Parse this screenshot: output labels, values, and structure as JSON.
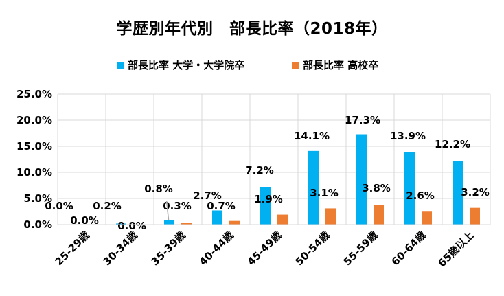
{
  "chart_data": {
    "type": "bar",
    "title": "学歴別年代別　部長比率（2018年）",
    "categories": [
      "25-29歳",
      "30-34歳",
      "35-39歳",
      "40-44歳",
      "45-49歳",
      "50-54歳",
      "55-59歳",
      "60-64歳",
      "65歳以上"
    ],
    "series": [
      {
        "name": "部長比率 大学・大学院卒",
        "color": "#00B0F0",
        "values": [
          0.0,
          0.2,
          0.8,
          2.7,
          7.2,
          14.1,
          17.3,
          13.9,
          12.2
        ],
        "labels": [
          "0.0%",
          "0.2%",
          "0.8%",
          "2.7%",
          "7.2%",
          "14.1%",
          "17.3%",
          "13.9%",
          "12.2%"
        ]
      },
      {
        "name": "部長比率 高校卒",
        "color": "#ED7D31",
        "values": [
          0.0,
          0.0,
          0.3,
          0.7,
          1.9,
          3.1,
          3.8,
          2.6,
          3.2
        ],
        "labels": [
          "0.0%",
          "0.0%",
          "0.3%",
          "0.7%",
          "1.9%",
          "3.1%",
          "3.8%",
          "2.6%",
          "3.2%"
        ]
      }
    ],
    "y_ticks": [
      "0.0%",
      "5.0%",
      "10.0%",
      "15.0%",
      "20.0%",
      "25.0%"
    ],
    "ylim": [
      0,
      25
    ],
    "xlabel": "",
    "ylabel": "",
    "grid": true,
    "legend_position": "top"
  }
}
